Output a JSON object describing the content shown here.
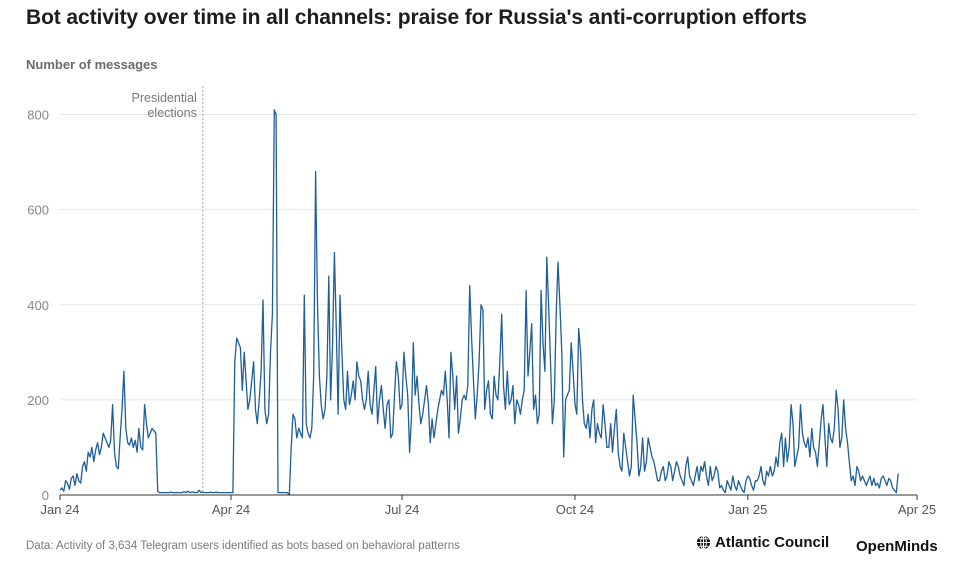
{
  "title": "Bot activity over time in all channels: praise for Russia's anti-corruption efforts",
  "source": "Data: Activity of 3,634 Telegram users identified as bots based on behavioral patterns",
  "logos": {
    "atlantic": "Atlantic Council",
    "openminds": "OpenMinds"
  },
  "colors": {
    "line": "#1f5e96",
    "grid": "#e6e6e6",
    "axis": "#333333",
    "annotation": "#aaaaaa"
  },
  "chart_data": {
    "type": "line",
    "title": "Bot activity over time in all channels: praise for Russia's anti-corruption efforts",
    "ylabel": "Number of messages",
    "xlabel": "",
    "ylim": [
      0,
      860
    ],
    "yticks": [
      0,
      200,
      400,
      600,
      800
    ],
    "xlim": [
      "2024-01-01",
      "2025-04-01"
    ],
    "xticks": [
      {
        "date": "2024-01-01",
        "label": "Jan 24"
      },
      {
        "date": "2024-04-01",
        "label": "Apr 24"
      },
      {
        "date": "2024-07-01",
        "label": "Jul 24"
      },
      {
        "date": "2024-10-01",
        "label": "Oct 24"
      },
      {
        "date": "2025-01-01",
        "label": "Jan 25"
      },
      {
        "date": "2025-04-01",
        "label": "Apr 25"
      }
    ],
    "grid": true,
    "annotations": [
      {
        "date": "2024-03-17",
        "text": [
          "Presidential",
          "elections"
        ]
      }
    ],
    "series": [
      {
        "start": "2024-01-01",
        "values": [
          10,
          15,
          8,
          30,
          25,
          12,
          35,
          40,
          20,
          45,
          30,
          25,
          60,
          70,
          50,
          90,
          80,
          100,
          70,
          95,
          110,
          85,
          100,
          130,
          120,
          110,
          100,
          115,
          190,
          90,
          60,
          55,
          120,
          180,
          260,
          140,
          110,
          105,
          120,
          100,
          115,
          90,
          140,
          100,
          95,
          190,
          150,
          120,
          130,
          140,
          135,
          130,
          8,
          5,
          5,
          5,
          5,
          5,
          5,
          6,
          5,
          5,
          5,
          5,
          5,
          5,
          7,
          5,
          8,
          5,
          6,
          6,
          5,
          5,
          10,
          5,
          6,
          5,
          5,
          5,
          6,
          5,
          5,
          6,
          5,
          5,
          5,
          5,
          5,
          5,
          5,
          5,
          5,
          280,
          330,
          320,
          310,
          220,
          300,
          240,
          180,
          200,
          240,
          280,
          180,
          150,
          200,
          260,
          410,
          180,
          150,
          170,
          300,
          380,
          810,
          800,
          5,
          5,
          5,
          5,
          5,
          5,
          0,
          100,
          170,
          160,
          120,
          140,
          130,
          120,
          420,
          150,
          130,
          120,
          140,
          250,
          680,
          400,
          250,
          190,
          160,
          180,
          250,
          460,
          200,
          310,
          510,
          350,
          170,
          420,
          300,
          200,
          180,
          260,
          190,
          210,
          240,
          200,
          280,
          250,
          240,
          200,
          180,
          200,
          260,
          190,
          170,
          220,
          270,
          150,
          200,
          230,
          180,
          140,
          190,
          200,
          120,
          130,
          210,
          280,
          250,
          180,
          190,
          300,
          250,
          210,
          90,
          160,
          320,
          210,
          250,
          190,
          150,
          170,
          200,
          230,
          190,
          110,
          160,
          120,
          150,
          180,
          200,
          220,
          210,
          260,
          200,
          120,
          300,
          250,
          180,
          250,
          130,
          160,
          200,
          210,
          200,
          230,
          440,
          330,
          240,
          160,
          210,
          280,
          400,
          390,
          180,
          220,
          240,
          170,
          160,
          250,
          210,
          200,
          280,
          380,
          230,
          180,
          260,
          190,
          200,
          230,
          150,
          200,
          190,
          170,
          200,
          220,
          430,
          250,
          300,
          360,
          180,
          210,
          150,
          170,
          430,
          320,
          260,
          500,
          400,
          280,
          150,
          200,
          380,
          490,
          400,
          300,
          80,
          200,
          210,
          220,
          320,
          260,
          190,
          170,
          350,
          300,
          200,
          150,
          140,
          170,
          120,
          180,
          200,
          110,
          150,
          130,
          120,
          190,
          150,
          100,
          100,
          150,
          90,
          140,
          180,
          90,
          60,
          50,
          130,
          100,
          70,
          40,
          60,
          210,
          160,
          110,
          40,
          60,
          120,
          50,
          70,
          120,
          100,
          80,
          70,
          50,
          30,
          30,
          50,
          60,
          30,
          40,
          70,
          60,
          30,
          50,
          70,
          60,
          40,
          30,
          20,
          60,
          80,
          40,
          30,
          20,
          40,
          60,
          30,
          60,
          50,
          70,
          40,
          20,
          60,
          30,
          40,
          60,
          50,
          15,
          20,
          10,
          5,
          30,
          20,
          10,
          40,
          20,
          10,
          30,
          20,
          10,
          5,
          30,
          40,
          35,
          20,
          10,
          30,
          30,
          40,
          60,
          30,
          20,
          50,
          40,
          60,
          40,
          50,
          80,
          60,
          110,
          130,
          60,
          120,
          70,
          100,
          190,
          150,
          60,
          80,
          100,
          190,
          130,
          110,
          100,
          120,
          80,
          140,
          100,
          90,
          60,
          110,
          160,
          190,
          120,
          60,
          150,
          120,
          110,
          140,
          220,
          180,
          100,
          120,
          200,
          140,
          110,
          70,
          30,
          40,
          20,
          60,
          50,
          30,
          40,
          30,
          20,
          30,
          40,
          20,
          35,
          20,
          25,
          15,
          35,
          40,
          30,
          20,
          35,
          30,
          15,
          10,
          5,
          45
        ]
      }
    ]
  }
}
